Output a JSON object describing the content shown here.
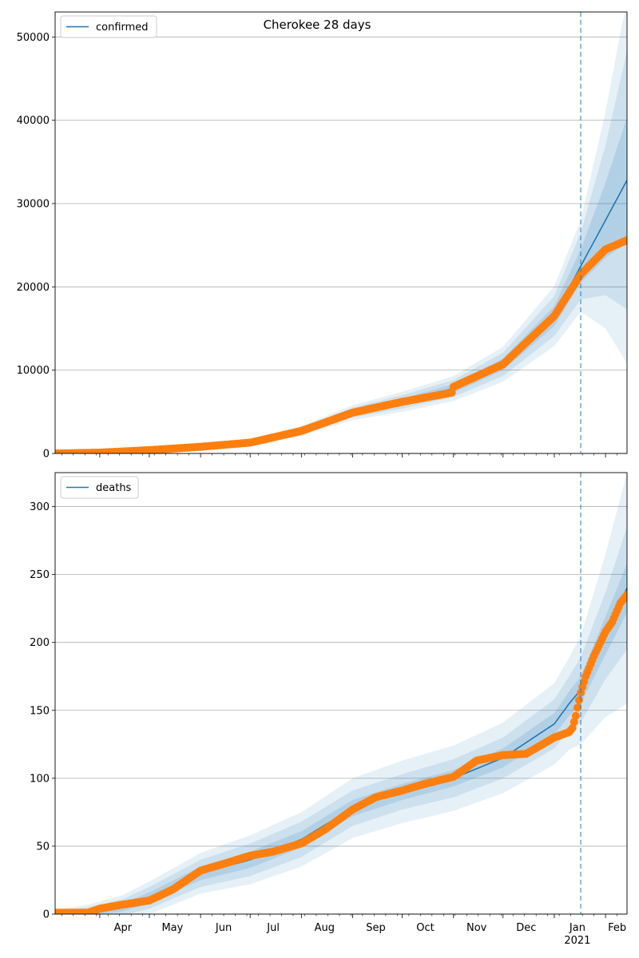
{
  "figure": {
    "title": "Cherokee 28 days"
  },
  "colors": {
    "model": "#1f77b4",
    "observed": "#ff7f0e",
    "band": "#1f77b4",
    "grid": "#b0b0b0",
    "forecast_line": "#1f77b4"
  },
  "chart_data": [
    {
      "type": "line",
      "legend": "confirmed",
      "legend_position": "top-left",
      "grid": "horizontal",
      "ylim": [
        0,
        53000
      ],
      "yticks": [
        0,
        10000,
        20000,
        30000,
        40000,
        50000
      ],
      "xlim": [
        "2020-03-05",
        "2021-02-14"
      ],
      "forecast_start": "2021-01-17",
      "month_labels": [
        "Apr",
        "May",
        "Jun",
        "Jul",
        "Aug",
        "Sep",
        "Oct",
        "Nov",
        "Dec",
        "Jan",
        "Feb"
      ],
      "year_label": "2021",
      "series": [
        {
          "name": "confirmed",
          "kind": "model",
          "x": [
            "2020-03-05",
            "2020-04-01",
            "2020-05-01",
            "2020-06-01",
            "2020-07-01",
            "2020-08-01",
            "2020-09-01",
            "2020-10-01",
            "2020-11-01",
            "2020-12-01",
            "2021-01-01",
            "2021-01-17",
            "2021-02-01",
            "2021-02-14"
          ],
          "y": [
            0,
            100,
            400,
            800,
            1300,
            2700,
            4900,
            6200,
            7800,
            10700,
            16500,
            22500,
            28000,
            32800
          ],
          "band_widths": [
            [
              0,
              20,
              50,
              80,
              120,
              200,
              300,
              400,
              500,
              700,
              1200,
              2000,
              4500,
              7500
            ],
            [
              0,
              40,
              100,
              160,
              240,
              400,
              600,
              800,
              1000,
              1400,
              2400,
              4000,
              9000,
              15500
            ],
            [
              0,
              60,
              150,
              240,
              360,
              600,
              900,
              1200,
              1500,
              2100,
              3600,
              5500,
              13000,
              22000
            ]
          ]
        },
        {
          "name": "observed",
          "kind": "points",
          "x": [
            "2020-03-05",
            "2020-04-01",
            "2020-05-01",
            "2020-06-01",
            "2020-07-01",
            "2020-08-01",
            "2020-09-01",
            "2020-10-01",
            "2020-10-31",
            "2020-11-01",
            "2020-12-01",
            "2021-01-01",
            "2021-01-17",
            "2021-02-01",
            "2021-02-14"
          ],
          "y": [
            0,
            100,
            400,
            800,
            1300,
            2700,
            4900,
            6200,
            7300,
            8000,
            10700,
            16500,
            21500,
            24500,
            25600
          ]
        }
      ]
    },
    {
      "type": "line",
      "legend": "deaths",
      "legend_position": "top-left",
      "grid": "horizontal",
      "ylim": [
        0,
        325
      ],
      "yticks": [
        0,
        50,
        100,
        150,
        200,
        250,
        300
      ],
      "xlim": [
        "2020-03-05",
        "2021-02-14"
      ],
      "forecast_start": "2021-01-17",
      "month_labels": [
        "Apr",
        "May",
        "Jun",
        "Jul",
        "Aug",
        "Sep",
        "Oct",
        "Nov",
        "Dec",
        "Jan",
        "Feb"
      ],
      "year_label": "2021",
      "series": [
        {
          "name": "deaths",
          "kind": "model",
          "x": [
            "2020-03-05",
            "2020-03-25",
            "2020-04-15",
            "2020-05-01",
            "2020-06-01",
            "2020-07-01",
            "2020-08-01",
            "2020-09-01",
            "2020-10-01",
            "2020-11-01",
            "2020-12-01",
            "2021-01-01",
            "2021-01-10",
            "2021-01-17",
            "2021-02-01",
            "2021-02-14"
          ],
          "y": [
            0,
            1,
            5,
            12,
            30,
            40,
            55,
            78,
            90,
            100,
            115,
            140,
            155,
            165,
            205,
            240
          ],
          "band_widths": [
            [
              1,
              2,
              3,
              4,
              5,
              6,
              6,
              6,
              6,
              6,
              7,
              8,
              9,
              10,
              14,
              18
            ],
            [
              2,
              4,
              6,
              8,
              10,
              12,
              13,
              13,
              13,
              14,
              15,
              18,
              20,
              24,
              32,
              45
            ],
            [
              3,
              6,
              9,
              12,
              15,
              18,
              20,
              22,
              23,
              24,
              26,
              30,
              34,
              40,
              60,
              85
            ]
          ]
        },
        {
          "name": "observed",
          "kind": "points",
          "x": [
            "2020-03-05",
            "2020-03-25",
            "2020-04-01",
            "2020-04-15",
            "2020-05-01",
            "2020-05-15",
            "2020-06-01",
            "2020-06-15",
            "2020-07-01",
            "2020-07-15",
            "2020-08-01",
            "2020-08-15",
            "2020-09-01",
            "2020-09-15",
            "2020-10-01",
            "2020-10-15",
            "2020-11-01",
            "2020-11-15",
            "2020-12-01",
            "2020-12-15",
            "2021-01-01",
            "2021-01-10",
            "2021-01-12",
            "2021-01-14",
            "2021-01-15",
            "2021-01-17",
            "2021-01-20",
            "2021-01-25",
            "2021-02-01",
            "2021-02-05",
            "2021-02-10",
            "2021-02-14"
          ],
          "y": [
            1,
            1,
            4,
            7,
            10,
            18,
            32,
            37,
            43,
            46,
            52,
            62,
            77,
            86,
            91,
            96,
            101,
            113,
            117,
            118,
            130,
            134,
            137,
            146,
            152,
            163,
            175,
            190,
            208,
            215,
            229,
            235
          ]
        }
      ]
    }
  ]
}
